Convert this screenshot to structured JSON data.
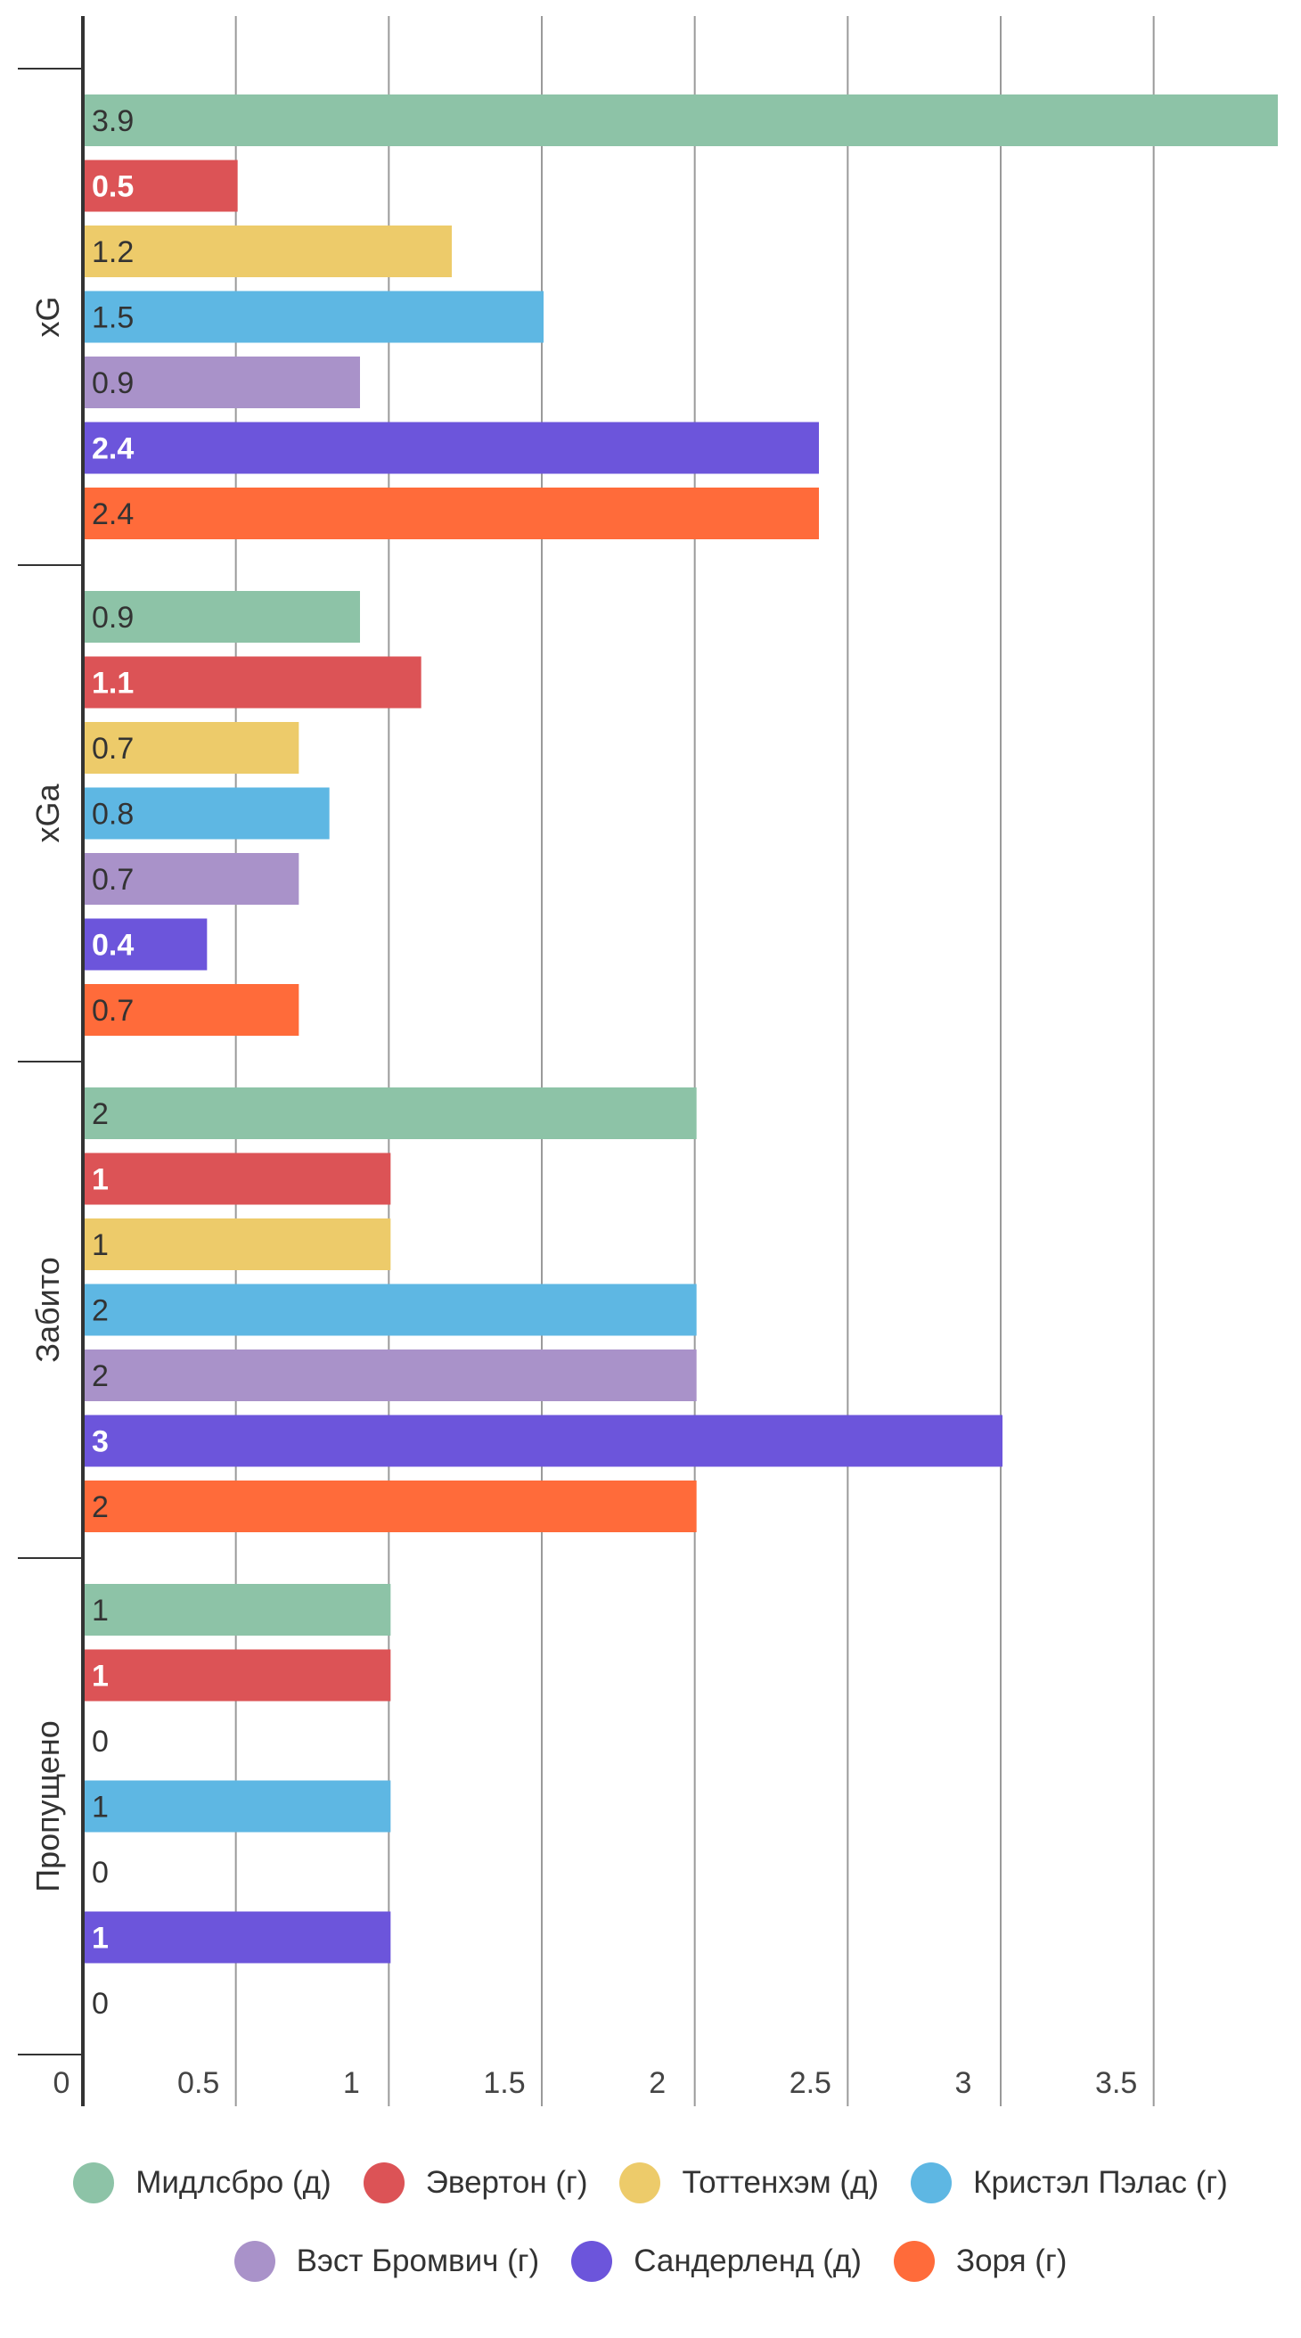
{
  "chart_data": {
    "type": "bar",
    "orientation": "horizontal",
    "categories": [
      "xG",
      "xGa",
      "Забито",
      "Пропущено"
    ],
    "series": [
      {
        "name": "Мидлсбро (д)",
        "color": "#8DC3A7",
        "label_color": "#333333",
        "values": [
          3.9,
          0.9,
          2,
          1
        ]
      },
      {
        "name": "Эвертон (г)",
        "color": "#DC5356",
        "label_color": "#ffffff",
        "values": [
          0.5,
          1.1,
          1,
          1
        ]
      },
      {
        "name": "Тоттенхэм (д)",
        "color": "#EDCB6A",
        "label_color": "#333333",
        "values": [
          1.2,
          0.7,
          1,
          0
        ]
      },
      {
        "name": "Кристэл Пэлас (г)",
        "color": "#5EB7E3",
        "label_color": "#333333",
        "values": [
          1.5,
          0.8,
          2,
          1
        ]
      },
      {
        "name": "Вэст Бромвич (г)",
        "color": "#A992C9",
        "label_color": "#333333",
        "values": [
          0.9,
          0.7,
          2,
          0
        ]
      },
      {
        "name": "Сандерленд (д)",
        "color": "#6C55DB",
        "label_color": "#ffffff",
        "values": [
          2.4,
          0.4,
          3,
          1
        ]
      },
      {
        "name": "Зоря (г)",
        "color": "#FF6B3A",
        "label_color": "#333333",
        "values": [
          2.4,
          0.7,
          2,
          0
        ]
      }
    ],
    "xlim": [
      0,
      3.9
    ],
    "x_ticks": [
      "0",
      "0.5",
      "1",
      "1.5",
      "2",
      "2.5",
      "3",
      "3.5"
    ],
    "x_tick_values": [
      0,
      0.5,
      1,
      1.5,
      2,
      2.5,
      3,
      3.5
    ],
    "grid": true,
    "legend_position": "bottom"
  }
}
